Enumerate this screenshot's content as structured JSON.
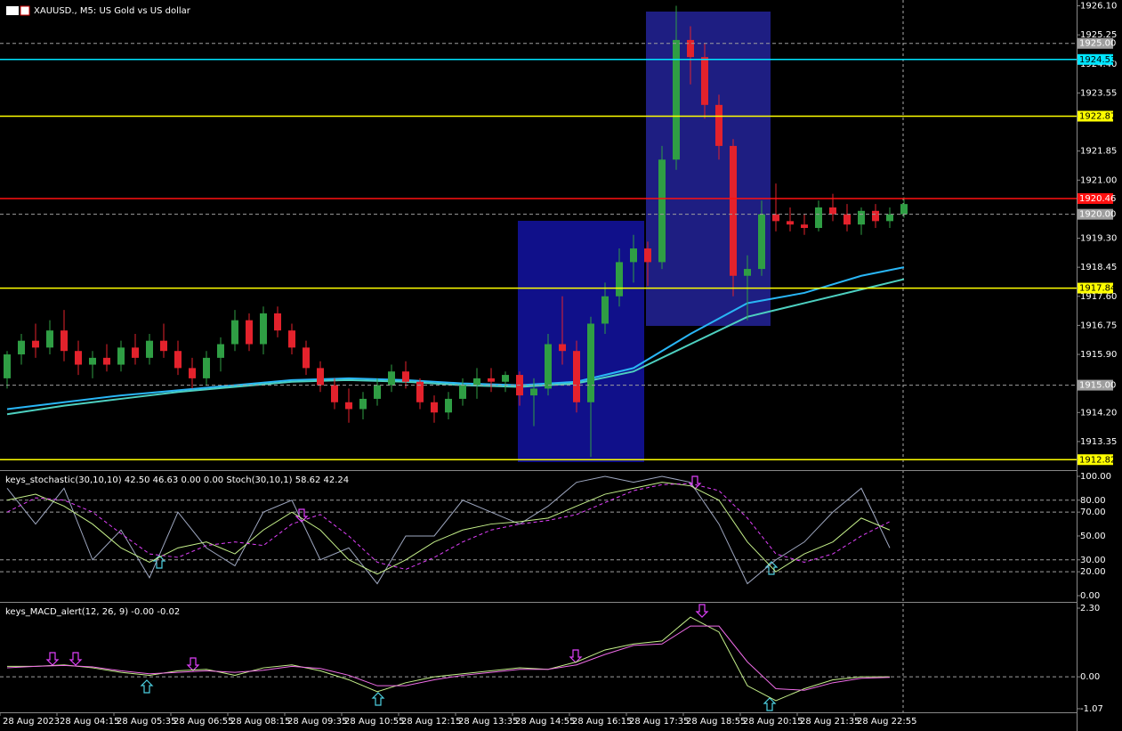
{
  "chart_data": [
    {
      "type": "candlestick",
      "title": "XAUUSD., M5: US Gold vs US dollar",
      "categories": [
        "28 Aug 2023",
        null,
        null,
        null,
        "28 Aug 04:15",
        null,
        null,
        null,
        "28 Aug 05:35",
        null,
        null,
        null,
        "28 Aug 06:55",
        null,
        null,
        null,
        "28 Aug 08:15",
        null,
        null,
        null,
        "28 Aug 09:35",
        null,
        null,
        null,
        "28 Aug 10:55",
        null,
        null,
        null,
        "28 Aug 12:15",
        null,
        null,
        null,
        "28 Aug 13:35",
        null,
        null,
        null,
        "28 Aug 14:55",
        null,
        null,
        null,
        "28 Aug 16:15",
        null,
        null,
        null,
        "28 Aug 17:35",
        null,
        null,
        null,
        "28 Aug 18:55",
        null,
        null,
        null,
        "28 Aug 20:15",
        null,
        null,
        null,
        "28 Aug 21:35",
        null,
        null,
        null,
        "28 Aug 22:55",
        null,
        null,
        null
      ],
      "open": [
        1915.2,
        1915.9,
        1916.3,
        1916.1,
        1916.6,
        1916.0,
        1915.6,
        1915.8,
        1915.6,
        1916.1,
        1915.8,
        1916.3,
        1916.0,
        1915.5,
        1915.2,
        1915.8,
        1916.2,
        1916.9,
        1916.2,
        1917.1,
        1916.6,
        1916.1,
        1915.5,
        1915.0,
        1914.5,
        1914.3,
        1914.6,
        1915.0,
        1915.4,
        1915.1,
        1914.5,
        1914.2,
        1914.6,
        1915.0,
        1915.2,
        1915.1,
        1915.3,
        1914.7,
        1914.9,
        1916.2,
        1916.0,
        1914.5,
        1916.8,
        1917.6,
        1918.6,
        1919.0,
        1918.6,
        1921.6,
        1925.1,
        1924.6,
        1923.2,
        1922.0,
        1918.2,
        1918.4,
        1920.0,
        1919.8,
        1919.7,
        1919.6,
        1920.2,
        1920.0,
        1919.7,
        1920.1,
        1919.8,
        1920.0
      ],
      "high": [
        1916.0,
        1916.5,
        1916.8,
        1916.9,
        1917.2,
        1916.3,
        1916.0,
        1916.2,
        1916.3,
        1916.5,
        1916.5,
        1916.8,
        1916.3,
        1915.8,
        1916.0,
        1916.4,
        1917.2,
        1917.1,
        1917.3,
        1917.3,
        1916.8,
        1916.3,
        1915.7,
        1915.2,
        1914.9,
        1914.8,
        1915.2,
        1915.6,
        1915.7,
        1915.2,
        1914.7,
        1914.8,
        1915.2,
        1915.5,
        1915.5,
        1915.4,
        1915.4,
        1915.2,
        1916.5,
        1917.6,
        1916.3,
        1917.0,
        1918.0,
        1919.0,
        1919.4,
        1919.2,
        1922.0,
        1926.1,
        1925.5,
        1925.0,
        1923.5,
        1922.2,
        1918.8,
        1920.4,
        1920.9,
        1920.2,
        1920.0,
        1920.4,
        1920.6,
        1920.3,
        1920.2,
        1920.3,
        1920.2,
        1920.5
      ],
      "low": [
        1914.9,
        1915.6,
        1915.8,
        1915.9,
        1915.7,
        1915.3,
        1915.2,
        1915.4,
        1915.4,
        1915.6,
        1915.6,
        1915.8,
        1915.3,
        1914.9,
        1915.0,
        1915.4,
        1916.0,
        1916.0,
        1915.9,
        1916.4,
        1915.9,
        1915.3,
        1914.8,
        1914.3,
        1913.9,
        1914.0,
        1914.4,
        1914.8,
        1914.9,
        1914.3,
        1913.9,
        1914.0,
        1914.4,
        1914.6,
        1914.8,
        1914.8,
        1914.4,
        1913.8,
        1914.7,
        1915.6,
        1914.2,
        1912.9,
        1916.5,
        1917.3,
        1918.0,
        1917.9,
        1918.4,
        1921.3,
        1923.8,
        1922.8,
        1921.6,
        1917.6,
        1916.9,
        1918.2,
        1919.5,
        1919.5,
        1919.4,
        1919.5,
        1919.8,
        1919.5,
        1919.4,
        1919.6,
        1919.6,
        1919.9
      ],
      "close": [
        1915.9,
        1916.3,
        1916.1,
        1916.6,
        1916.0,
        1915.6,
        1915.8,
        1915.6,
        1916.1,
        1915.8,
        1916.3,
        1916.0,
        1915.5,
        1915.2,
        1915.8,
        1916.2,
        1916.9,
        1916.2,
        1917.1,
        1916.6,
        1916.1,
        1915.5,
        1915.0,
        1914.5,
        1914.3,
        1914.6,
        1915.0,
        1915.4,
        1915.1,
        1914.5,
        1914.2,
        1914.6,
        1915.0,
        1915.2,
        1915.1,
        1915.3,
        1914.7,
        1914.9,
        1916.2,
        1916.0,
        1914.5,
        1916.8,
        1917.6,
        1918.6,
        1919.0,
        1918.6,
        1921.6,
        1925.1,
        1924.6,
        1923.2,
        1922.0,
        1918.2,
        1918.4,
        1920.0,
        1919.8,
        1919.7,
        1919.6,
        1920.2,
        1920.0,
        1919.7,
        1920.1,
        1919.8,
        1920.0,
        1920.3
      ],
      "up_color": "#2f9e44",
      "down_color": "#e3222c",
      "ylim": [
        1912.54,
        1926.27
      ],
      "yticks": [
        {
          "value": 1926.1,
          "label": "1926.10"
        },
        1925.25,
        {
          "value": 1924.4,
          "label": "1924.40"
        },
        1923.55,
        1921.85,
        {
          "value": 1921,
          "label": "1921.00"
        },
        {
          "value": 1919.3,
          "label": "1919.30"
        },
        1918.45,
        {
          "value": 1917.6,
          "label": "1917.60"
        },
        1916.75,
        {
          "value": 1915.9,
          "label": "1915.90"
        },
        {
          "value": 1914.2,
          "label": "1914.20"
        },
        1913.35
      ],
      "levels": [
        {
          "value": 1925,
          "label": "1925.00",
          "color": "#9e9e9e",
          "dashed": true
        },
        {
          "value": 1924.53,
          "label": "1924.53",
          "color": "#00e5ff",
          "dashed": false
        },
        {
          "value": 1922.87,
          "label": "1922.87",
          "color": "#ffff00",
          "dashed": false
        },
        {
          "value": 1920.46,
          "label": "1920.46",
          "color": "#ff1010",
          "dashed": false
        },
        {
          "value": 1920,
          "label": "1920.00",
          "color": "#9e9e9e",
          "dashed": true
        },
        {
          "value": 1917.84,
          "label": "1917.84",
          "color": "#ffff00",
          "dashed": false
        },
        {
          "value": 1915,
          "label": "1915.00",
          "color": "#9e9e9e",
          "dashed": true
        },
        {
          "value": 1912.82,
          "label": "1912.82",
          "color": "#ffff00",
          "dashed": false
        }
      ],
      "lines": [
        {
          "color": "#29b6f6",
          "x": [
            0,
            4,
            8,
            12,
            16,
            20,
            24,
            28,
            32,
            36,
            40,
            44,
            48,
            52,
            56,
            60,
            63
          ],
          "values": [
            1914.3,
            1914.5,
            1914.7,
            1914.85,
            1915.0,
            1915.15,
            1915.2,
            1915.15,
            1915.05,
            1915.0,
            1915.1,
            1915.5,
            1916.5,
            1917.4,
            1917.7,
            1918.2,
            1918.45
          ]
        },
        {
          "color": "#4dd0c0",
          "x": [
            0,
            4,
            8,
            12,
            16,
            20,
            24,
            28,
            32,
            36,
            40,
            44,
            48,
            52,
            56,
            60,
            63
          ],
          "values": [
            1914.15,
            1914.4,
            1914.6,
            1914.8,
            1914.95,
            1915.1,
            1915.15,
            1915.1,
            1915.0,
            1914.95,
            1915.05,
            1915.4,
            1916.2,
            1917.0,
            1917.4,
            1917.8,
            1918.1
          ]
        }
      ]
    },
    {
      "type": "line",
      "title": "keys_stochastic(30,10,10) 42.50 46.63 0.00 0.00 Stoch(30,10,1) 58.62 42.24",
      "x": [
        0,
        2,
        4,
        6,
        8,
        10,
        12,
        14,
        16,
        18,
        20,
        22,
        24,
        26,
        28,
        30,
        32,
        34,
        36,
        38,
        40,
        42,
        44,
        46,
        48,
        50,
        52,
        54,
        56,
        58,
        60,
        62
      ],
      "series": [
        {
          "color": "#9ea7c0",
          "dashed": false,
          "values": [
            90,
            60,
            90,
            30,
            55,
            15,
            70,
            40,
            25,
            70,
            80,
            30,
            40,
            10,
            50,
            50,
            80,
            70,
            60,
            75,
            95,
            100,
            95,
            100,
            95,
            60,
            10,
            30,
            45,
            70,
            90,
            40
          ]
        },
        {
          "color": "#c5f08a",
          "dashed": false,
          "values": [
            80,
            85,
            75,
            60,
            40,
            28,
            40,
            45,
            35,
            55,
            70,
            55,
            30,
            18,
            30,
            45,
            55,
            60,
            62,
            65,
            75,
            85,
            90,
            95,
            92,
            80,
            45,
            20,
            35,
            45,
            65,
            55
          ]
        },
        {
          "color": "#e040fb",
          "dashed": true,
          "values": [
            70,
            82,
            80,
            70,
            52,
            35,
            32,
            42,
            45,
            42,
            60,
            68,
            50,
            28,
            22,
            32,
            45,
            55,
            60,
            63,
            68,
            78,
            88,
            93,
            94,
            88,
            65,
            35,
            28,
            35,
            50,
            62
          ]
        }
      ],
      "ylim": [
        -4.5,
        103.7
      ],
      "yticks": [
        {
          "value": 100,
          "label": "100.00"
        },
        {
          "value": 80,
          "label": "80.00"
        },
        {
          "value": 70,
          "label": "70.00"
        },
        {
          "value": 50,
          "label": "50.00"
        },
        {
          "value": 30,
          "label": "30.00"
        },
        {
          "value": 20,
          "label": "20.00"
        },
        {
          "value": 0,
          "label": "0.00"
        }
      ],
      "levels": [
        80,
        70,
        30,
        20
      ]
    },
    {
      "type": "line",
      "title": "keys_MACD_alert(12, 26, 9) -0.00 -0.02",
      "x": [
        0,
        2,
        4,
        6,
        8,
        10,
        12,
        14,
        16,
        18,
        20,
        22,
        24,
        26,
        28,
        30,
        32,
        34,
        36,
        38,
        40,
        42,
        44,
        46,
        48,
        50,
        52,
        54,
        56,
        58,
        60,
        62
      ],
      "series": [
        {
          "color": "#c5f08a",
          "dashed": false,
          "values": [
            0.35,
            0.35,
            0.4,
            0.3,
            0.15,
            0.05,
            0.2,
            0.25,
            0.05,
            0.3,
            0.4,
            0.2,
            -0.1,
            -0.5,
            -0.2,
            0,
            0.1,
            0.2,
            0.3,
            0.25,
            0.5,
            0.9,
            1.1,
            1.2,
            2.0,
            1.5,
            -0.3,
            -0.8,
            -0.4,
            -0.1,
            0,
            0
          ]
        },
        {
          "color": "#f06ce8",
          "dashed": false,
          "values": [
            0.3,
            0.35,
            0.38,
            0.33,
            0.2,
            0.1,
            0.15,
            0.2,
            0.15,
            0.22,
            0.35,
            0.28,
            0.05,
            -0.3,
            -0.3,
            -0.1,
            0.05,
            0.15,
            0.25,
            0.25,
            0.4,
            0.75,
            1.05,
            1.1,
            1.7,
            1.7,
            0.5,
            -0.4,
            -0.45,
            -0.2,
            -0.05,
            -0.02
          ]
        }
      ],
      "ylim": [
        -1.19,
        2.45
      ],
      "yticks": [
        {
          "value": 2.3,
          "label": "2.30"
        },
        {
          "value": 0,
          "label": "0.00"
        },
        -1.07
      ],
      "levels": [
        0
      ]
    }
  ]
}
